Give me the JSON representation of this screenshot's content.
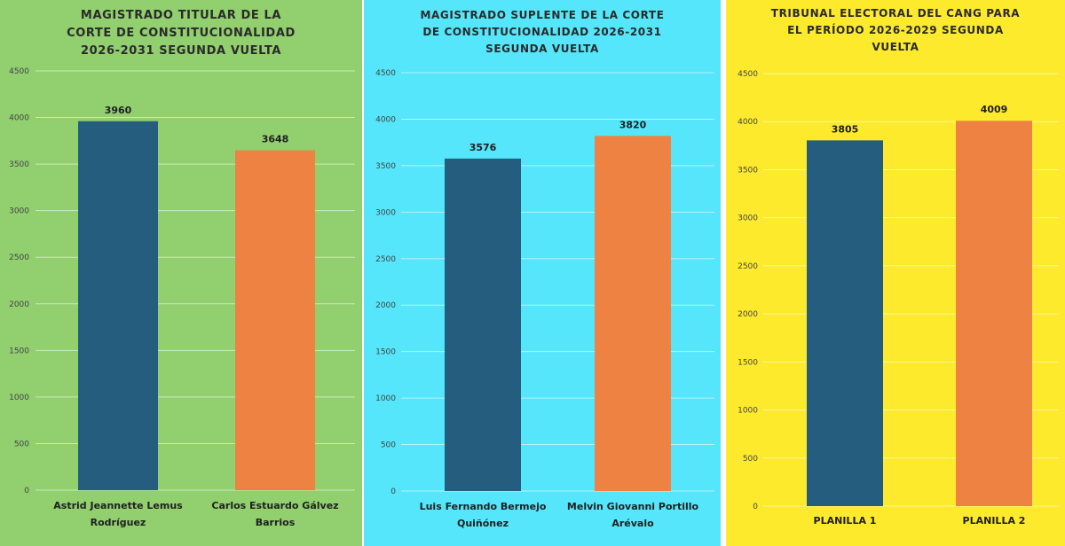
{
  "colors": {
    "series_1": "#245d7e",
    "series_2": "#ed8243",
    "panel_1_bg": "#91cf6f",
    "panel_2_bg": "#55e6fb",
    "panel_3_bg": "#fdea2c"
  },
  "chart_data": [
    {
      "type": "bar",
      "title_lines": [
        "MAGISTRADO TITULAR DE LA",
        "CORTE DE CONSTITUCIONALIDAD",
        "2026-2031 SEGUNDA VUELTA"
      ],
      "categories": [
        [
          "Astrid Jeannette Lemus",
          "Rodríguez"
        ],
        [
          "Carlos Estuardo Gálvez",
          "Barrios"
        ]
      ],
      "values": [
        3960,
        3648
      ],
      "value_labels": [
        "3960",
        "3648"
      ],
      "yticks": [
        "0",
        "500",
        "1000",
        "1500",
        "2000",
        "2500",
        "3000",
        "3500",
        "4000",
        "4500"
      ],
      "ylim": [
        0,
        4500
      ],
      "grid": true,
      "xlabel": "",
      "ylabel": ""
    },
    {
      "type": "bar",
      "title_lines": [
        "MAGISTRADO SUPLENTE DE LA CORTE",
        "DE CONSTITUCIONALIDAD 2026-2031",
        "SEGUNDA VUELTA"
      ],
      "categories": [
        [
          "Luis Fernando Bermejo",
          "Quiñónez"
        ],
        [
          "Melvin Giovanni Portillo",
          "Arévalo"
        ]
      ],
      "values": [
        3576,
        3820
      ],
      "value_labels": [
        "3576",
        "3820"
      ],
      "yticks": [
        "0",
        "500",
        "1000",
        "1500",
        "2000",
        "2500",
        "3000",
        "3500",
        "4000",
        "4500"
      ],
      "ylim": [
        0,
        4500
      ],
      "grid": true,
      "xlabel": "",
      "ylabel": ""
    },
    {
      "type": "bar",
      "title_lines": [
        "TRIBUNAL ELECTORAL DEL CANG PARA",
        "EL PERÍODO 2026-2029 SEGUNDA",
        "VUELTA"
      ],
      "categories": [
        [
          "PLANILLA 1"
        ],
        [
          "PLANILLA 2"
        ]
      ],
      "values": [
        3805,
        4009
      ],
      "value_labels": [
        "3805",
        "4009"
      ],
      "yticks": [
        "0",
        "500",
        "1000",
        "1500",
        "2000",
        "2500",
        "3000",
        "3500",
        "4000",
        "4500"
      ],
      "ylim": [
        0,
        4500
      ],
      "grid": true,
      "xlabel": "",
      "ylabel": ""
    }
  ]
}
